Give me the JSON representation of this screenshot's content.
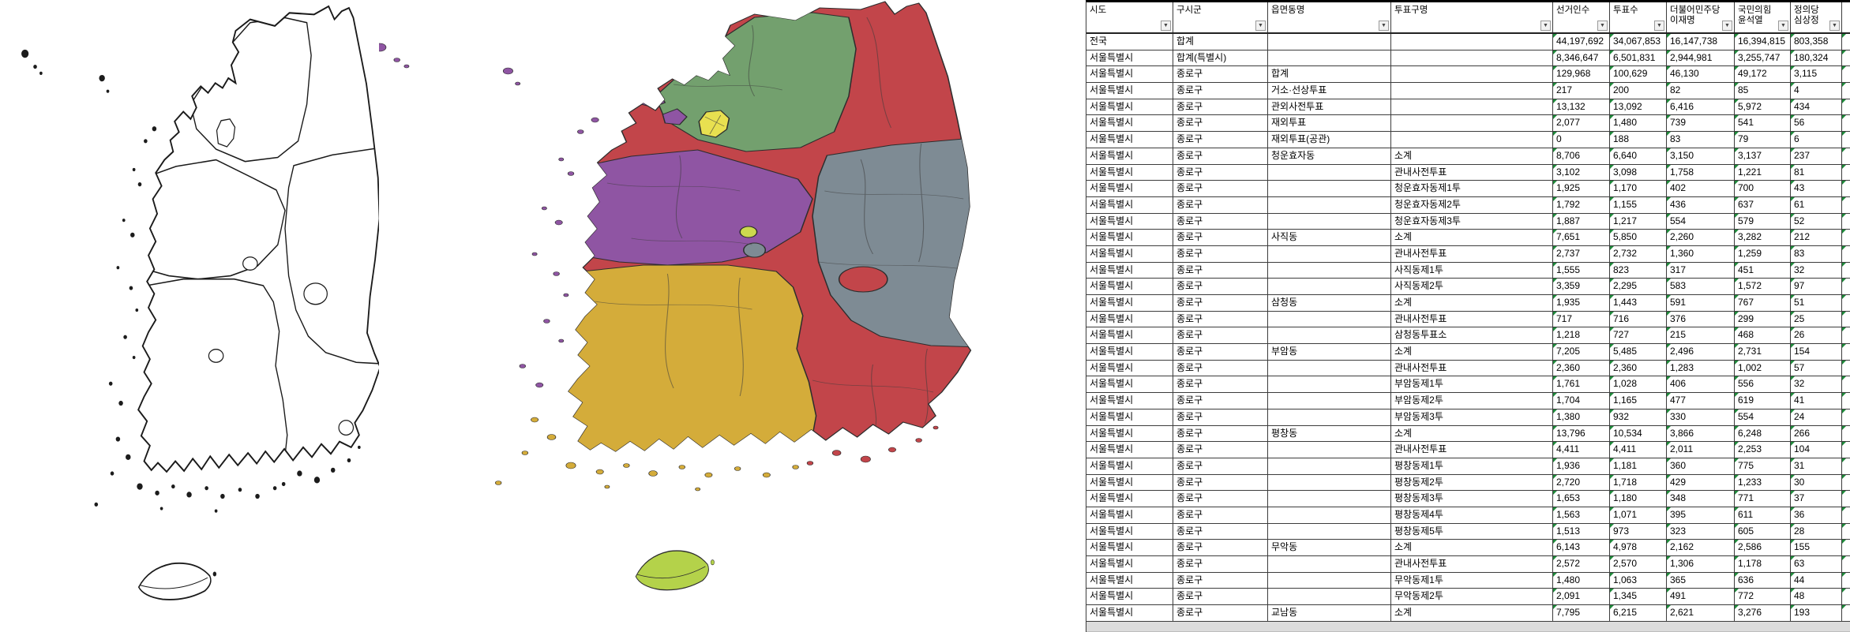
{
  "maps": {
    "outline_map": {
      "description": "south-korea-province-outline-map",
      "stroke": "#1a1a1a",
      "fill": "#ffffff"
    },
    "choropleth_map": {
      "description": "south-korea-district-choropleth-map",
      "region_colors": {
        "gangwon_gyeongnam_red": "#c2454a",
        "gyeonggi_green": "#73a06e",
        "seoul_yellow": "#e8e050",
        "chungcheong_purple": "#8f55a3",
        "gyeongbuk_gray": "#7e8b94",
        "jeolla_gold": "#d4ac3a",
        "jeju_yellowgreen": "#b4d24a",
        "sejong_yellowgreen": "#ccd94e",
        "border": "#2d2d2d"
      }
    }
  },
  "table": {
    "headers": [
      {
        "label": "시도"
      },
      {
        "label": "구시군"
      },
      {
        "label": "읍면동명"
      },
      {
        "label": "투표구명"
      },
      {
        "label": "선거인수"
      },
      {
        "label": "투표수"
      },
      {
        "label": "더불어민주당\n이재명"
      },
      {
        "label": "국민의힘\n윤석열"
      },
      {
        "label": "정의당\n심상정"
      }
    ],
    "rows": [
      [
        "전국",
        "합계",
        "",
        "",
        "44,197,692",
        "34,067,853",
        "16,147,738",
        "16,394,815",
        "803,358"
      ],
      [
        "서울특별시",
        "합계(특별시)",
        "",
        "",
        "8,346,647",
        "6,501,831",
        "2,944,981",
        "3,255,747",
        "180,324"
      ],
      [
        "서울특별시",
        "종로구",
        "합계",
        "",
        "129,968",
        "100,629",
        "46,130",
        "49,172",
        "3,115"
      ],
      [
        "서울특별시",
        "종로구",
        "거소·선상투표",
        "",
        "217",
        "200",
        "82",
        "85",
        "4"
      ],
      [
        "서울특별시",
        "종로구",
        "관외사전투표",
        "",
        "13,132",
        "13,092",
        "6,416",
        "5,972",
        "434"
      ],
      [
        "서울특별시",
        "종로구",
        "재외투표",
        "",
        "2,077",
        "1,480",
        "739",
        "541",
        "56"
      ],
      [
        "서울특별시",
        "종로구",
        "재외투표(공관)",
        "",
        "0",
        "188",
        "83",
        "79",
        "6"
      ],
      [
        "서울특별시",
        "종로구",
        "청운효자동",
        "소계",
        "8,706",
        "6,640",
        "3,150",
        "3,137",
        "237"
      ],
      [
        "서울특별시",
        "종로구",
        "",
        "관내사전투표",
        "3,102",
        "3,098",
        "1,758",
        "1,221",
        "81"
      ],
      [
        "서울특별시",
        "종로구",
        "",
        "청운효자동제1투",
        "1,925",
        "1,170",
        "402",
        "700",
        "43"
      ],
      [
        "서울특별시",
        "종로구",
        "",
        "청운효자동제2투",
        "1,792",
        "1,155",
        "436",
        "637",
        "61"
      ],
      [
        "서울특별시",
        "종로구",
        "",
        "청운효자동제3투",
        "1,887",
        "1,217",
        "554",
        "579",
        "52"
      ],
      [
        "서울특별시",
        "종로구",
        "사직동",
        "소계",
        "7,651",
        "5,850",
        "2,260",
        "3,282",
        "212"
      ],
      [
        "서울특별시",
        "종로구",
        "",
        "관내사전투표",
        "2,737",
        "2,732",
        "1,360",
        "1,259",
        "83"
      ],
      [
        "서울특별시",
        "종로구",
        "",
        "사직동제1투",
        "1,555",
        "823",
        "317",
        "451",
        "32"
      ],
      [
        "서울특별시",
        "종로구",
        "",
        "사직동제2투",
        "3,359",
        "2,295",
        "583",
        "1,572",
        "97"
      ],
      [
        "서울특별시",
        "종로구",
        "삼청동",
        "소계",
        "1,935",
        "1,443",
        "591",
        "767",
        "51"
      ],
      [
        "서울특별시",
        "종로구",
        "",
        "관내사전투표",
        "717",
        "716",
        "376",
        "299",
        "25"
      ],
      [
        "서울특별시",
        "종로구",
        "",
        "삼청동투표소",
        "1,218",
        "727",
        "215",
        "468",
        "26"
      ],
      [
        "서울특별시",
        "종로구",
        "부암동",
        "소계",
        "7,205",
        "5,485",
        "2,496",
        "2,731",
        "154"
      ],
      [
        "서울특별시",
        "종로구",
        "",
        "관내사전투표",
        "2,360",
        "2,360",
        "1,283",
        "1,002",
        "57"
      ],
      [
        "서울특별시",
        "종로구",
        "",
        "부암동제1투",
        "1,761",
        "1,028",
        "406",
        "556",
        "32"
      ],
      [
        "서울특별시",
        "종로구",
        "",
        "부암동제2투",
        "1,704",
        "1,165",
        "477",
        "619",
        "41"
      ],
      [
        "서울특별시",
        "종로구",
        "",
        "부암동제3투",
        "1,380",
        "932",
        "330",
        "554",
        "24"
      ],
      [
        "서울특별시",
        "종로구",
        "평창동",
        "소계",
        "13,796",
        "10,534",
        "3,866",
        "6,248",
        "266"
      ],
      [
        "서울특별시",
        "종로구",
        "",
        "관내사전투표",
        "4,411",
        "4,411",
        "2,011",
        "2,253",
        "104"
      ],
      [
        "서울특별시",
        "종로구",
        "",
        "평창동제1투",
        "1,936",
        "1,181",
        "360",
        "775",
        "31"
      ],
      [
        "서울특별시",
        "종로구",
        "",
        "평창동제2투",
        "2,720",
        "1,718",
        "429",
        "1,233",
        "30"
      ],
      [
        "서울특별시",
        "종로구",
        "",
        "평창동제3투",
        "1,653",
        "1,180",
        "348",
        "771",
        "37"
      ],
      [
        "서울특별시",
        "종로구",
        "",
        "평창동제4투",
        "1,563",
        "1,071",
        "395",
        "611",
        "36"
      ],
      [
        "서울특별시",
        "종로구",
        "",
        "평창동제5투",
        "1,513",
        "973",
        "323",
        "605",
        "28"
      ],
      [
        "서울특별시",
        "종로구",
        "무악동",
        "소계",
        "6,143",
        "4,978",
        "2,162",
        "2,586",
        "155"
      ],
      [
        "서울특별시",
        "종로구",
        "",
        "관내사전투표",
        "2,572",
        "2,570",
        "1,306",
        "1,178",
        "63"
      ],
      [
        "서울특별시",
        "종로구",
        "",
        "무악동제1투",
        "1,480",
        "1,063",
        "365",
        "636",
        "44"
      ],
      [
        "서울특별시",
        "종로구",
        "",
        "무악동제2투",
        "2,091",
        "1,345",
        "491",
        "772",
        "48"
      ],
      [
        "서울특별시",
        "종로구",
        "교남동",
        "소계",
        "7,795",
        "6,215",
        "2,621",
        "3,276",
        "193"
      ]
    ],
    "filter_icon": "▼",
    "error_marker_color": "#1f8a3b"
  }
}
